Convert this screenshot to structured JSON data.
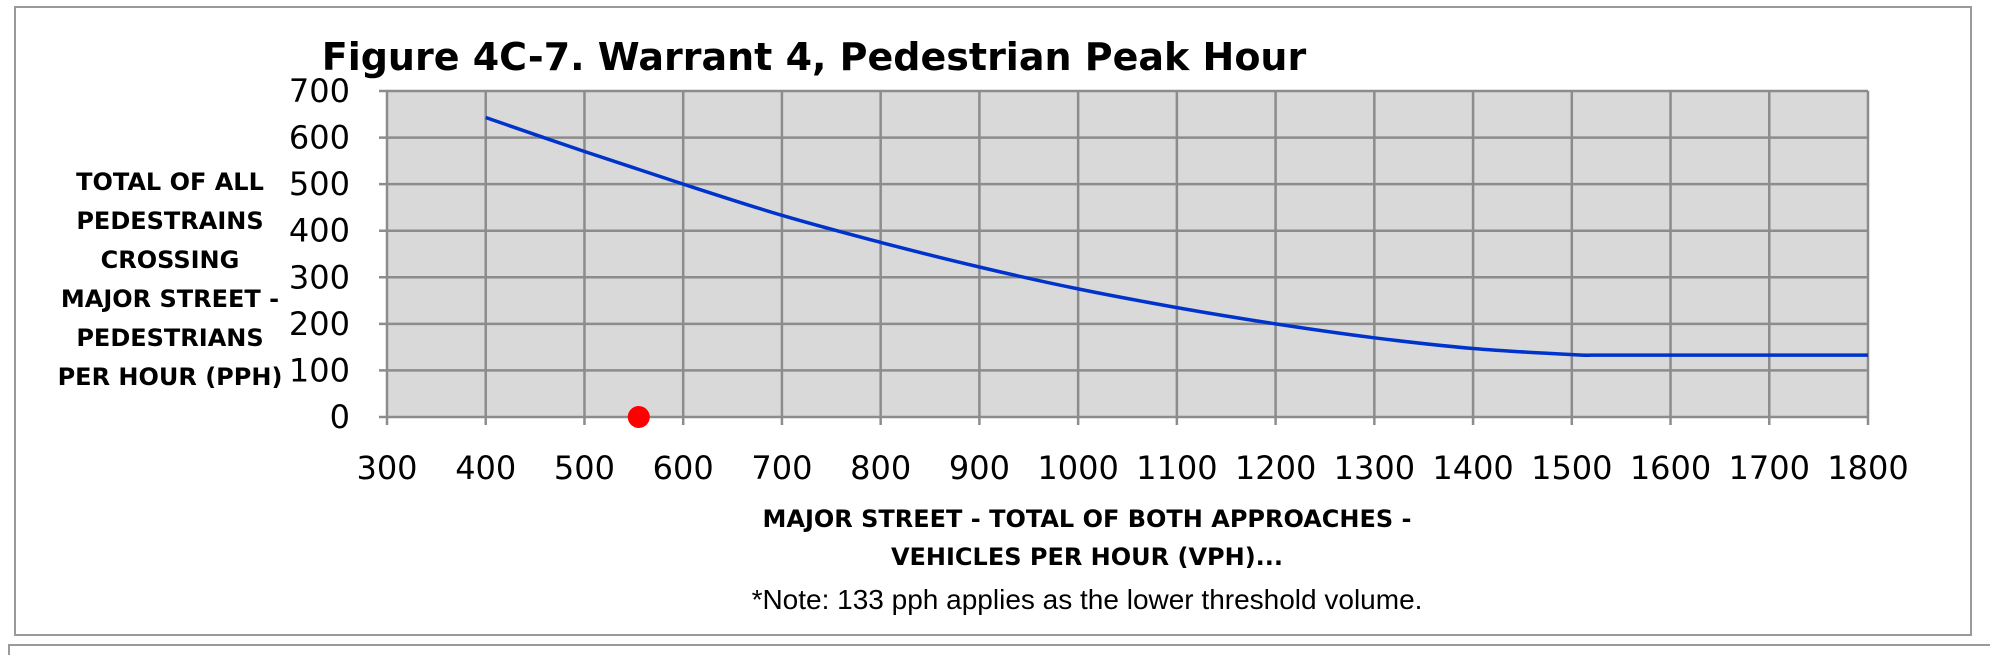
{
  "chart_data": {
    "type": "line",
    "title": "Figure 4C-7. Warrant 4, Pedestrian Peak Hour",
    "xlabel_lines": [
      "MAJOR STREET - TOTAL OF BOTH APPROACHES -",
      "VEHICLES PER HOUR (VPH)..."
    ],
    "ylabel_lines": [
      "TOTAL OF ALL",
      "PEDESTRAINS",
      "CROSSING",
      "MAJOR STREET -",
      "PEDESTRIANS",
      "PER HOUR (PPH)"
    ],
    "note": "*Note: 133 pph applies as the lower threshold volume.",
    "xlim": [
      300,
      1800
    ],
    "ylim": [
      0,
      700
    ],
    "x_ticks": [
      300,
      400,
      500,
      600,
      700,
      800,
      900,
      1000,
      1100,
      1200,
      1300,
      1400,
      1500,
      1600,
      1700,
      1800
    ],
    "y_ticks": [
      0,
      100,
      200,
      300,
      400,
      500,
      600,
      700
    ],
    "grid": true,
    "plot_background": "#d9d9d9",
    "series": [
      {
        "color": "#0033cc",
        "x": [
          400,
          500,
          600,
          700,
          800,
          900,
          1000,
          1100,
          1200,
          1300,
          1400,
          1500,
          1530,
          1600,
          1700,
          1800
        ],
        "y": [
          643,
          570,
          500,
          433,
          375,
          322,
          275,
          235,
          200,
          170,
          147,
          134,
          133,
          133,
          133,
          133
        ]
      }
    ],
    "points": [
      {
        "x": 555,
        "y": 0,
        "color": "#ff0000"
      }
    ]
  }
}
